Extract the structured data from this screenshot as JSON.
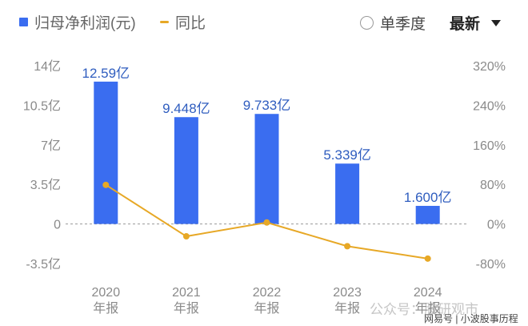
{
  "legend": {
    "series1_label": "归母净利润(元)",
    "series2_label": "同比",
    "period_option": "单季度",
    "sort_label": "最新"
  },
  "chart_data": {
    "type": "bar",
    "categories": [
      [
        "2020",
        "年报"
      ],
      [
        "2021",
        "年报"
      ],
      [
        "2022",
        "年报"
      ],
      [
        "2023",
        "年报"
      ],
      [
        "2024",
        "年报"
      ]
    ],
    "series": [
      {
        "name": "归母净利润(元)",
        "type": "bar",
        "axis": "left",
        "values": [
          12.59,
          9.448,
          9.733,
          5.339,
          1.6
        ],
        "labels": [
          "12.59亿",
          "9.448亿",
          "9.733亿",
          "5.339亿",
          "1.600亿"
        ],
        "color": "#3a6df0"
      },
      {
        "name": "同比",
        "type": "line",
        "axis": "right",
        "values": [
          79,
          -25,
          3,
          -45,
          -70
        ],
        "color": "#e7a826"
      }
    ],
    "y_left": {
      "ticks": [
        14,
        10.5,
        7,
        3.5,
        0,
        -3.5
      ],
      "tick_labels": [
        "14亿",
        "10.5亿",
        "7亿",
        "3.5亿",
        "0",
        "-3.5亿"
      ],
      "range": [
        -3.5,
        14
      ]
    },
    "y_right": {
      "ticks": [
        320,
        240,
        160,
        80,
        0,
        -80
      ],
      "tick_labels": [
        "320%",
        "240%",
        "160%",
        "80%",
        "0%",
        "-80%"
      ],
      "range": [
        -80,
        320
      ]
    }
  },
  "watermark": {
    "text": "公众号：股研观市"
  },
  "footer": {
    "text": "网易号 | 小波股事历程"
  },
  "colors": {
    "bar": "#3a6df0",
    "line": "#e7a826",
    "axis_text": "#8a8a8a",
    "label_text": "#2f5dbf"
  }
}
